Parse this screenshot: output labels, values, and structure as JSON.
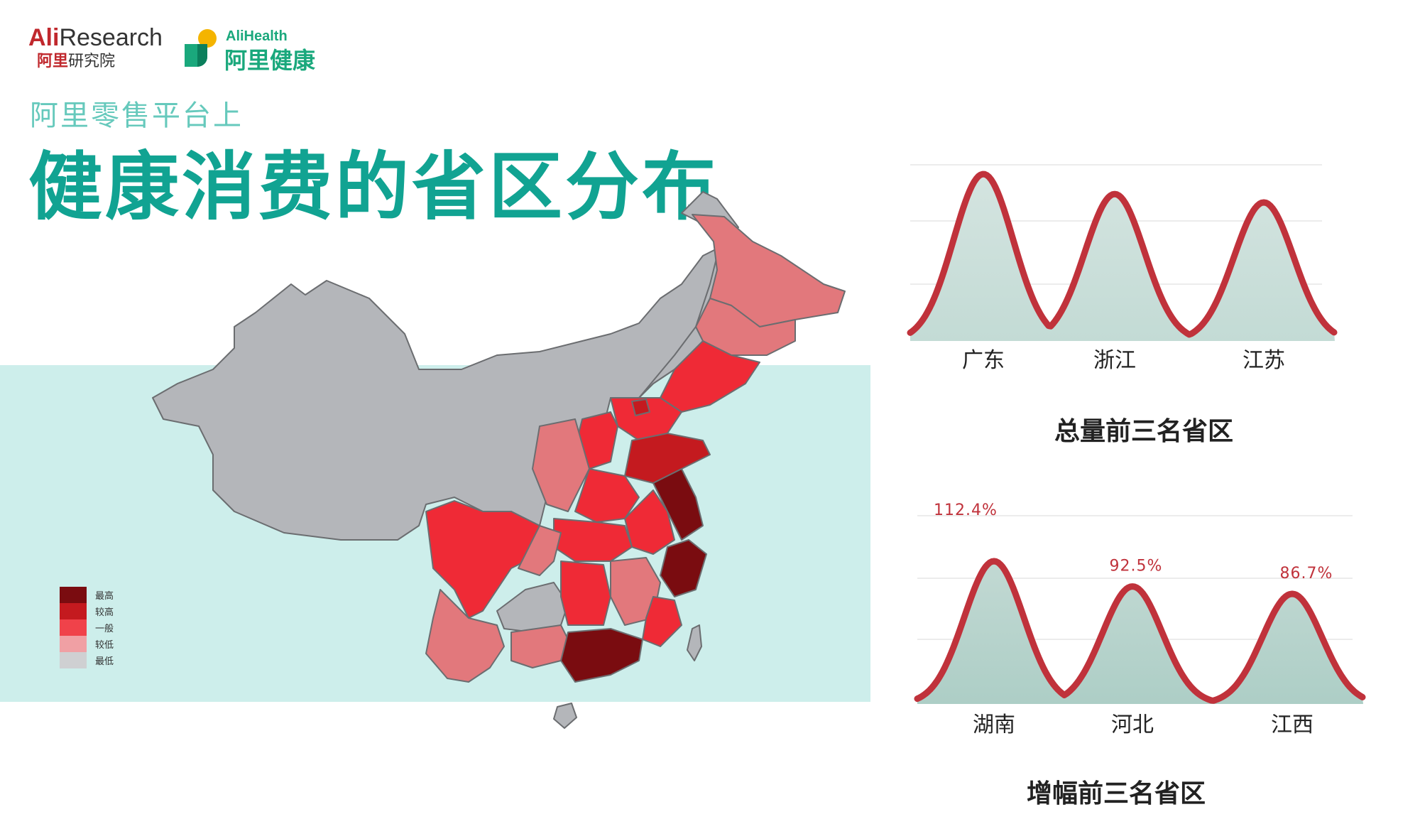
{
  "header": {
    "logo_ali_brand": "Ali",
    "logo_ali_research": "Research",
    "logo_ali_sub_a": "阿里",
    "logo_ali_sub_b": "研究院",
    "logo_health_en": "AliHealth",
    "logo_health_cn": "阿里健康",
    "subtitle": "阿里零售平台上",
    "title": "健康消费的省区分布"
  },
  "colors": {
    "band": "#cdeeeb",
    "title": "#11a392",
    "subtitle": "#66c9bc",
    "curve": "#c0323b",
    "peak_fill_top": "#d4e4e0",
    "peak_fill_bottom": "#b7d3cd",
    "province_gray": "#b4b6ba"
  },
  "legend": {
    "items": [
      {
        "label": "最高",
        "color": "#7a0c10"
      },
      {
        "label": "较高",
        "color": "#c41a1f"
      },
      {
        "label": "一般",
        "color": "#f0424a"
      },
      {
        "label": "较低",
        "color": "#f0a0a4"
      },
      {
        "label": "最低",
        "color": "#cfd0d2"
      }
    ]
  },
  "chart_data": [
    {
      "type": "area",
      "title": "总量前三名省区",
      "categories": [
        "广东",
        "浙江",
        "江苏"
      ],
      "series": [
        {
          "values": [
            1.0,
            0.88,
            0.83
          ]
        }
      ]
    },
    {
      "type": "area",
      "title": "增幅前三名省区",
      "categories": [
        "湖南",
        "河北",
        "江西"
      ],
      "series": [
        {
          "values": [
            112.4,
            92.5,
            86.7
          ]
        }
      ],
      "data_labels": [
        "112.4%",
        "92.5%",
        "86.7%"
      ]
    }
  ]
}
